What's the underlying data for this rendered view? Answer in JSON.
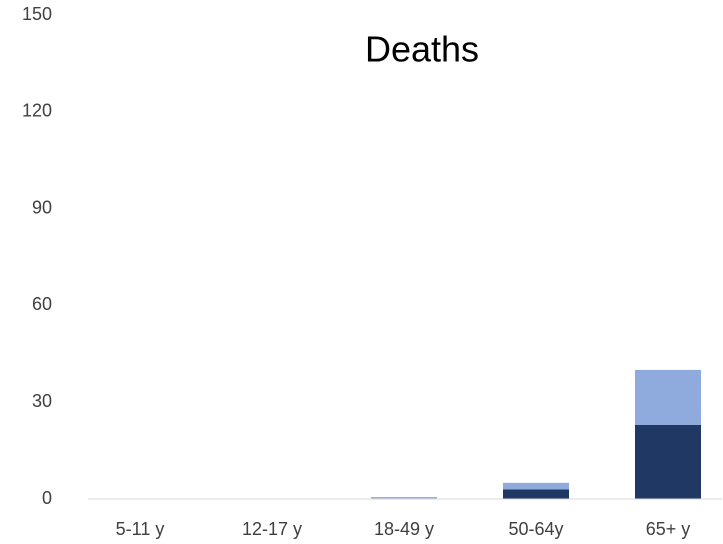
{
  "chart_data": {
    "type": "stacked_bar",
    "title": "Deaths",
    "categories": [
      "5-11 y",
      "12-17 y",
      "18-49 y",
      "50-64y",
      "65+ y"
    ],
    "series": [
      {
        "color": "#203864",
        "values": [
          0,
          0,
          0.2,
          3,
          23
        ]
      },
      {
        "color": "#8faadc",
        "values": [
          0,
          0,
          0.4,
          2,
          17
        ]
      }
    ],
    "ylim": [
      0,
      150
    ],
    "yticks": [
      0,
      30,
      60,
      90,
      120,
      150
    ],
    "grid": false
  }
}
